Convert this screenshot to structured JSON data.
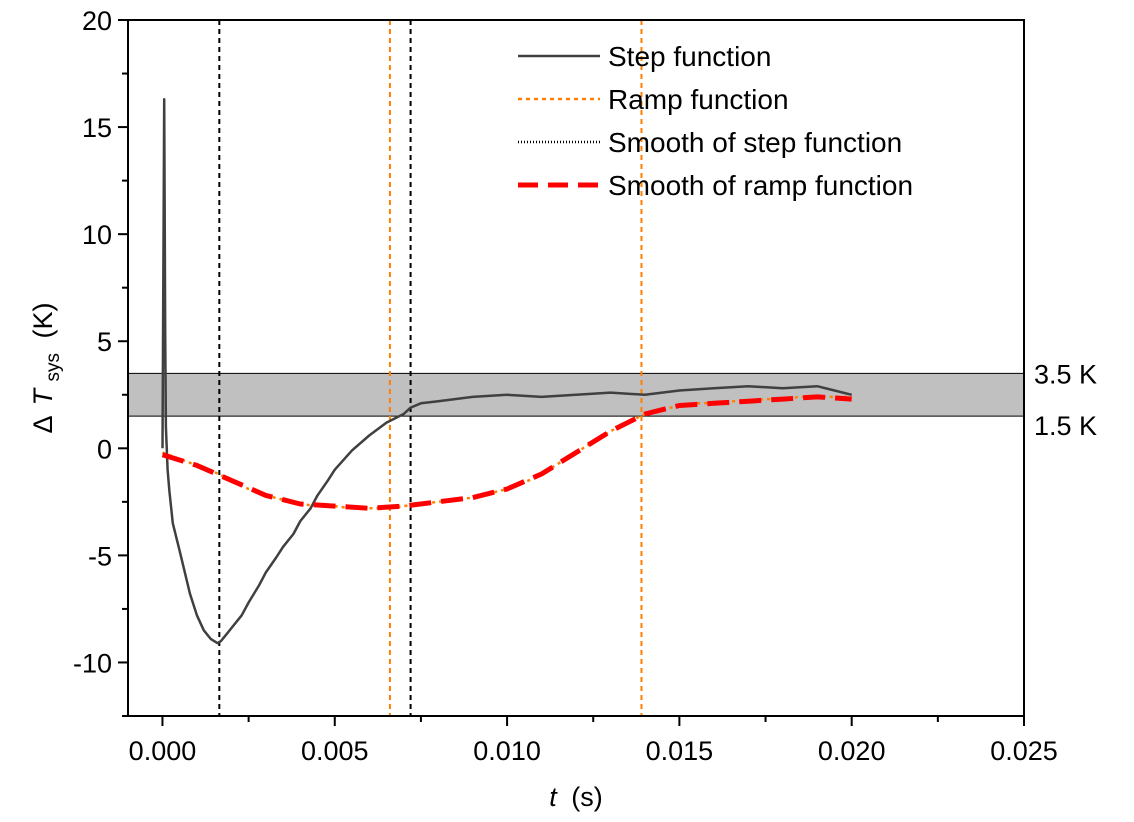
{
  "chart_data": {
    "type": "line",
    "xlabel_var": "t",
    "xlabel_unit": "(s)",
    "ylabel_prefix": "Δ",
    "ylabel_var": "T",
    "ylabel_sub": "sys",
    "ylabel_unit": "(K)",
    "xlim": [
      -0.001,
      0.025
    ],
    "ylim": [
      -12.5,
      20
    ],
    "xticks": [
      0.0,
      0.005,
      0.01,
      0.015,
      0.02,
      0.025
    ],
    "xtick_labels": [
      "0.000",
      "0.005",
      "0.010",
      "0.015",
      "0.020",
      "0.025"
    ],
    "yticks": [
      -10,
      -5,
      0,
      5,
      10,
      15,
      20
    ],
    "ytick_labels": [
      "-10",
      "-5",
      "0",
      "5",
      "10",
      "15",
      "20"
    ],
    "band": {
      "lower": 1.5,
      "upper": 3.5,
      "lower_label": "1.5 K",
      "upper_label": "3.5 K",
      "color": "#c0c0c0"
    },
    "vlines": [
      {
        "x": 0.00165,
        "color": "#000000"
      },
      {
        "x": 0.0072,
        "color": "#000000"
      },
      {
        "x": 0.0066,
        "color": "#ff8000"
      },
      {
        "x": 0.0139,
        "color": "#ff8000"
      }
    ],
    "legend": {
      "position": "top-right"
    },
    "series": [
      {
        "name": "Step function",
        "color": "#404040",
        "style": "solid",
        "x": [
          0.0,
          3e-05,
          5e-05,
          8e-05,
          0.0001,
          0.00015,
          0.0002,
          0.0003,
          0.0005,
          0.0008,
          0.001,
          0.0012,
          0.0014,
          0.0016,
          0.0017,
          0.0019,
          0.0021,
          0.0023,
          0.0025,
          0.0028,
          0.003,
          0.0033,
          0.0035,
          0.0038,
          0.004,
          0.0043,
          0.0045,
          0.0048,
          0.005,
          0.0055,
          0.006,
          0.0065,
          0.007,
          0.0072,
          0.0075,
          0.008,
          0.009,
          0.01,
          0.011,
          0.012,
          0.013,
          0.014,
          0.015,
          0.016,
          0.017,
          0.018,
          0.019,
          0.0195,
          0.02
        ],
        "y": [
          0.0,
          9.6,
          16.3,
          5.4,
          1.0,
          -1.0,
          -2.0,
          -3.5,
          -4.8,
          -6.8,
          -7.8,
          -8.5,
          -8.9,
          -9.1,
          -9.0,
          -8.6,
          -8.2,
          -7.8,
          -7.2,
          -6.4,
          -5.8,
          -5.1,
          -4.6,
          -4.0,
          -3.4,
          -2.8,
          -2.2,
          -1.5,
          -1.0,
          -0.1,
          0.6,
          1.2,
          1.6,
          1.9,
          2.1,
          2.2,
          2.4,
          2.5,
          2.4,
          2.5,
          2.6,
          2.5,
          2.7,
          2.8,
          2.9,
          2.8,
          2.9,
          2.7,
          2.5
        ]
      },
      {
        "name": "Ramp function",
        "color": "#ff8000",
        "style": "dotted",
        "x": [
          0.0,
          0.0005,
          0.001,
          0.0015,
          0.002,
          0.0025,
          0.003,
          0.0035,
          0.004,
          0.0045,
          0.005,
          0.0055,
          0.006,
          0.0065,
          0.007,
          0.0075,
          0.008,
          0.0085,
          0.009,
          0.0095,
          0.01,
          0.0105,
          0.011,
          0.0115,
          0.012,
          0.0125,
          0.013,
          0.0135,
          0.014,
          0.0145,
          0.015,
          0.0155,
          0.016,
          0.0165,
          0.017,
          0.0175,
          0.018,
          0.0185,
          0.019,
          0.0195,
          0.02
        ],
        "y": [
          -0.2,
          -0.5,
          -0.8,
          -1.1,
          -1.5,
          -1.9,
          -2.2,
          -2.4,
          -2.6,
          -2.7,
          -2.7,
          -2.8,
          -2.8,
          -2.8,
          -2.7,
          -2.6,
          -2.5,
          -2.4,
          -2.3,
          -2.1,
          -1.9,
          -1.6,
          -1.2,
          -0.7,
          -0.2,
          0.3,
          0.8,
          1.2,
          1.6,
          1.8,
          2.0,
          2.1,
          2.1,
          2.2,
          2.2,
          2.3,
          2.3,
          2.4,
          2.4,
          2.4,
          2.4
        ]
      },
      {
        "name": "Smooth of step function",
        "color": "#000000",
        "style": "dotted-fine",
        "x": [],
        "y": []
      },
      {
        "name": "Smooth of ramp function",
        "color": "#ff0000",
        "style": "dashed",
        "x": [
          0.0,
          0.001,
          0.002,
          0.003,
          0.004,
          0.005,
          0.006,
          0.007,
          0.008,
          0.009,
          0.01,
          0.011,
          0.012,
          0.013,
          0.014,
          0.015,
          0.016,
          0.017,
          0.018,
          0.019,
          0.02
        ],
        "y": [
          -0.3,
          -0.8,
          -1.5,
          -2.2,
          -2.6,
          -2.7,
          -2.8,
          -2.7,
          -2.5,
          -2.3,
          -1.9,
          -1.2,
          -0.2,
          0.8,
          1.6,
          2.0,
          2.1,
          2.2,
          2.3,
          2.4,
          2.3
        ]
      }
    ]
  }
}
